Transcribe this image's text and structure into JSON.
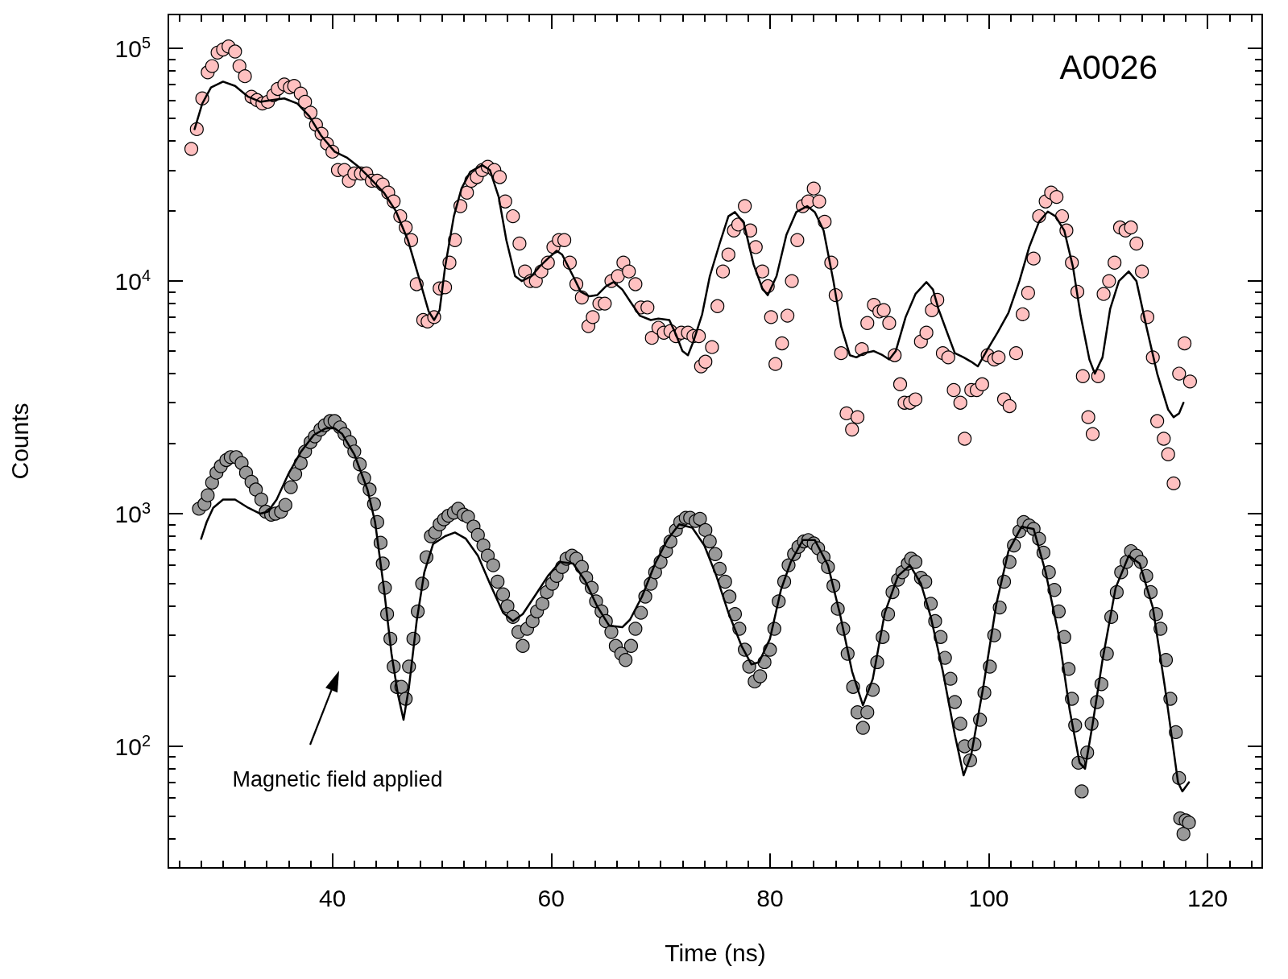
{
  "chart_data": {
    "type": "scatter",
    "xlabel": "Time (ns)",
    "ylabel": "Counts",
    "log": "y",
    "line_style": "solid",
    "xlim": [
      25,
      125
    ],
    "xticks": [
      40,
      60,
      80,
      100,
      120
    ],
    "ylim": [
      30,
      140000
    ],
    "yticks": [
      {
        "value": 100,
        "label": "10$^{2}$"
      },
      {
        "value": 1000,
        "label": "10$^{3}$"
      },
      {
        "value": 10000,
        "label": "10$^{4}$"
      },
      {
        "value": 100000,
        "label": "10$^{5}$"
      }
    ],
    "annotations": [
      "A0026",
      "Magnetic field applied"
    ],
    "series": [
      {
        "marker": "circle",
        "color": "#ffc0c0",
        "x": [
          27.1,
          27.6,
          28.1,
          28.6,
          29.0,
          29.5,
          30.0,
          30.5,
          31.1,
          31.5,
          32.0,
          32.6,
          33.1,
          33.6,
          34.1,
          34.6,
          35.0,
          35.6,
          36.1,
          36.5,
          37.1,
          37.5,
          38.0,
          38.5,
          39.0,
          39.5,
          40.0,
          40.5,
          41.1,
          41.5,
          42.0,
          42.6,
          43.1,
          43.6,
          44.1,
          44.6,
          45.1,
          45.6,
          46.2,
          46.7,
          47.2,
          47.7,
          48.3,
          48.7,
          49.3,
          49.8,
          50.3,
          50.7,
          51.2,
          51.7,
          52.3,
          52.7,
          53.2,
          53.7,
          54.2,
          54.8,
          55.3,
          55.8,
          56.5,
          57.1,
          57.6,
          58.1,
          58.6,
          59.1,
          59.7,
          60.2,
          60.7,
          61.2,
          61.7,
          62.3,
          62.8,
          63.4,
          63.8,
          64.4,
          64.9,
          65.5,
          66.1,
          66.6,
          67.1,
          67.7,
          68.2,
          68.8,
          69.2,
          69.8,
          70.3,
          70.9,
          71.4,
          71.9,
          72.5,
          73.0,
          73.5,
          73.7,
          74.1,
          74.7,
          75.2,
          75.7,
          76.2,
          76.7,
          77.1,
          77.7,
          78.2,
          78.7,
          79.3,
          79.8,
          80.1,
          80.5,
          81.1,
          81.6,
          82.0,
          82.5,
          83.0,
          83.5,
          84.0,
          84.5,
          85.0,
          85.6,
          86.0,
          86.5,
          87.0,
          87.5,
          88.0,
          88.4,
          88.9,
          89.5,
          90.0,
          90.4,
          90.9,
          91.4,
          91.9,
          92.3,
          92.8,
          93.3,
          93.8,
          94.3,
          94.8,
          95.3,
          95.8,
          96.3,
          96.8,
          97.4,
          97.8,
          98.4,
          98.9,
          99.4,
          99.9,
          100.5,
          100.9,
          101.4,
          101.9,
          102.5,
          103.1,
          103.6,
          104.1,
          104.6,
          105.2,
          105.7,
          106.2,
          106.7,
          107.1,
          107.6,
          108.1,
          108.6,
          109.1,
          109.5,
          110.0,
          110.5,
          111.0,
          111.5,
          112.0,
          112.5,
          113.0,
          113.5,
          114.0,
          114.5,
          115.0,
          115.4,
          116.0,
          116.4,
          116.9,
          117.4,
          117.9,
          118.4
        ],
        "values": [
          37000,
          45000,
          61000,
          79000,
          84000,
          96000,
          99000,
          102000,
          97000,
          84000,
          76000,
          62000,
          60000,
          58000,
          59000,
          63000,
          67000,
          70000,
          68000,
          69000,
          64000,
          59000,
          53000,
          47000,
          43000,
          39000,
          36000,
          30000,
          30000,
          27000,
          29000,
          29000,
          29000,
          27000,
          27000,
          26000,
          24000,
          22000,
          19000,
          17000,
          15000,
          9700,
          6800,
          6700,
          7000,
          9300,
          9400,
          12000,
          15000,
          21000,
          24000,
          27000,
          28000,
          30000,
          31000,
          30000,
          28000,
          22000,
          19000,
          14500,
          11000,
          10000,
          10000,
          11000,
          12000,
          14000,
          15000,
          15000,
          12000,
          9700,
          8500,
          6400,
          7000,
          8000,
          8000,
          10000,
          10500,
          12000,
          11000,
          9700,
          7700,
          7700,
          5700,
          6300,
          6000,
          6100,
          5800,
          6000,
          6000,
          5800,
          5800,
          4300,
          4500,
          5200,
          7800,
          11000,
          13000,
          16500,
          17500,
          21000,
          16500,
          14000,
          11000,
          9500,
          7000,
          4400,
          5400,
          7100,
          10000,
          15000,
          21000,
          22000,
          25000,
          22000,
          18000,
          12000,
          8700,
          4900,
          2700,
          2300,
          2600,
          5100,
          6600,
          7900,
          7400,
          7500,
          6600,
          4800,
          3600,
          3000,
          3000,
          3100,
          5500,
          6000,
          7500,
          8300,
          4900,
          4700,
          3400,
          3000,
          2100,
          3400,
          3400,
          3600,
          4800,
          4600,
          4700,
          3100,
          2900,
          4900,
          7200,
          8900,
          12500,
          19000,
          22000,
          24000,
          23000,
          19000,
          16500,
          12000,
          9000,
          3900,
          2600,
          2200,
          3900,
          8800,
          10000,
          12000,
          17000,
          16500,
          17000,
          14500,
          11000,
          7000,
          4700,
          2500,
          2100,
          1800,
          1350,
          4000,
          5400,
          3700
        ]
      },
      {
        "type": "line",
        "marker": "none",
        "color": "#000000",
        "x": [
          27.4,
          28.1,
          28.9,
          30.0,
          31.1,
          32.3,
          33.4,
          34.5,
          35.6,
          36.8,
          37.9,
          39.0,
          40.2,
          41.3,
          42.4,
          43.5,
          44.7,
          45.8,
          46.9,
          48.0,
          48.8,
          49.3,
          49.8,
          50.3,
          51.1,
          51.8,
          52.6,
          53.7,
          54.4,
          55.2,
          55.9,
          56.7,
          57.3,
          58.2,
          58.9,
          59.7,
          60.5,
          61.0,
          62.0,
          62.7,
          63.5,
          64.2,
          65.0,
          65.7,
          66.5,
          67.2,
          68.1,
          69.1,
          69.8,
          70.8,
          71.4,
          72.0,
          72.5,
          73.0,
          73.8,
          74.5,
          75.4,
          76.2,
          76.8,
          77.6,
          78.5,
          79.3,
          79.8,
          80.6,
          81.5,
          82.4,
          83.4,
          84.1,
          84.9,
          85.8,
          86.5,
          87.3,
          87.9,
          88.6,
          89.5,
          90.3,
          90.9,
          91.5,
          92.4,
          93.3,
          94.3,
          94.9,
          95.4,
          96.2,
          96.9,
          97.7,
          98.4,
          99.0,
          99.9,
          100.8,
          101.8,
          102.8,
          103.7,
          104.6,
          105.4,
          106.1,
          106.9,
          107.7,
          108.4,
          109.2,
          109.7,
          110.4,
          111.1,
          111.9,
          112.8,
          113.5,
          114.4,
          115.4,
          116.4,
          116.9,
          117.4,
          117.8
        ],
        "values": [
          45000,
          58000,
          68000,
          72000,
          69000,
          62000,
          59000,
          60000,
          61000,
          58000,
          51000,
          42000,
          36000,
          34000,
          31000,
          27500,
          24000,
          20000,
          15000,
          10000,
          7400,
          6800,
          7500,
          11500,
          19000,
          25000,
          29500,
          31500,
          30000,
          23000,
          15000,
          10500,
          10000,
          10500,
          11500,
          12500,
          13500,
          13000,
          10500,
          9000,
          8600,
          8700,
          9500,
          9900,
          9200,
          8200,
          7100,
          6800,
          6900,
          6800,
          5900,
          5000,
          4800,
          5500,
          7200,
          10500,
          14500,
          19000,
          19800,
          17800,
          11800,
          9300,
          8700,
          10500,
          15800,
          19800,
          21000,
          19800,
          16500,
          10000,
          6400,
          4800,
          4700,
          4900,
          5000,
          4800,
          4600,
          5000,
          7000,
          8800,
          9900,
          9200,
          7600,
          6000,
          4900,
          4700,
          4500,
          4300,
          5100,
          6000,
          7300,
          10000,
          14000,
          18000,
          19900,
          19000,
          16500,
          11500,
          7100,
          4600,
          4000,
          4700,
          7600,
          10000,
          11000,
          10000,
          6400,
          4000,
          2800,
          2600,
          2700,
          3000
        ]
      },
      {
        "marker": "circle",
        "color": "#999999",
        "x": [
          27.8,
          28.3,
          28.6,
          29.0,
          29.4,
          29.8,
          30.3,
          30.7,
          31.2,
          31.7,
          32.1,
          32.6,
          33.0,
          33.5,
          33.9,
          34.4,
          34.8,
          35.3,
          35.7,
          36.2,
          36.6,
          37.1,
          37.5,
          38.0,
          38.4,
          38.9,
          39.3,
          39.8,
          40.2,
          40.7,
          41.1,
          41.6,
          42.0,
          42.5,
          42.9,
          43.4,
          43.8,
          44.1,
          44.4,
          44.6,
          44.8,
          45.0,
          45.3,
          45.6,
          45.9,
          46.3,
          46.7,
          47.0,
          47.4,
          47.8,
          48.2,
          48.6,
          49.0,
          49.4,
          49.8,
          50.2,
          50.6,
          51.1,
          51.5,
          52.0,
          52.4,
          52.9,
          53.3,
          53.8,
          54.2,
          54.7,
          55.1,
          55.6,
          56.0,
          56.5,
          57.0,
          57.4,
          57.8,
          58.3,
          58.7,
          59.2,
          59.6,
          60.1,
          60.5,
          61.0,
          61.4,
          61.9,
          62.3,
          62.8,
          63.2,
          63.7,
          64.1,
          64.6,
          65.0,
          65.5,
          65.9,
          66.4,
          66.8,
          67.3,
          67.7,
          68.2,
          68.6,
          69.1,
          69.5,
          70.0,
          70.5,
          70.9,
          71.4,
          71.8,
          72.3,
          72.7,
          73.2,
          73.6,
          74.1,
          74.5,
          75.0,
          75.4,
          75.9,
          76.3,
          76.8,
          77.2,
          77.7,
          78.1,
          78.6,
          79.1,
          79.5,
          80.0,
          80.4,
          80.8,
          81.3,
          81.7,
          82.2,
          82.6,
          83.1,
          83.5,
          84.0,
          84.4,
          84.9,
          85.3,
          85.8,
          86.2,
          86.7,
          87.1,
          87.6,
          88.0,
          88.5,
          88.9,
          89.4,
          89.8,
          90.3,
          90.8,
          91.2,
          91.7,
          92.1,
          92.6,
          92.9,
          93.3,
          93.8,
          94.2,
          94.7,
          95.1,
          95.6,
          96.0,
          96.5,
          96.9,
          97.4,
          97.8,
          98.3,
          98.7,
          99.2,
          99.6,
          100.1,
          100.5,
          101.0,
          101.4,
          101.9,
          102.3,
          102.8,
          103.2,
          103.7,
          104.1,
          104.6,
          105.0,
          105.5,
          106.0,
          106.4,
          106.9,
          107.3,
          107.6,
          107.9,
          108.2,
          108.5,
          109.0,
          109.4,
          109.9,
          110.3,
          110.8,
          111.2,
          111.7,
          112.1,
          112.6,
          113.0,
          113.5,
          113.9,
          114.4,
          114.8,
          115.3,
          115.7,
          116.2,
          116.6,
          117.1,
          117.4,
          117.5,
          117.8,
          118.0,
          118.3
        ],
        "values": [
          1050,
          1100,
          1200,
          1360,
          1500,
          1600,
          1700,
          1750,
          1750,
          1650,
          1500,
          1370,
          1270,
          1150,
          1020,
          990,
          1000,
          1020,
          1090,
          1300,
          1480,
          1650,
          1850,
          2030,
          2150,
          2300,
          2400,
          2500,
          2500,
          2350,
          2200,
          2030,
          1850,
          1630,
          1420,
          1270,
          1100,
          920,
          750,
          610,
          480,
          370,
          290,
          220,
          180,
          180,
          160,
          220,
          290,
          380,
          500,
          650,
          800,
          830,
          900,
          945,
          980,
          1010,
          1050,
          990,
          970,
          880,
          810,
          730,
          660,
          600,
          510,
          450,
          400,
          360,
          310,
          270,
          320,
          345,
          380,
          410,
          460,
          500,
          540,
          590,
          640,
          660,
          640,
          590,
          530,
          480,
          420,
          380,
          345,
          310,
          270,
          250,
          235,
          270,
          320,
          375,
          440,
          500,
          560,
          620,
          690,
          760,
          850,
          920,
          960,
          960,
          930,
          950,
          850,
          760,
          670,
          580,
          510,
          440,
          370,
          320,
          260,
          220,
          190,
          200,
          230,
          260,
          320,
          420,
          510,
          600,
          670,
          720,
          760,
          770,
          745,
          710,
          650,
          590,
          490,
          390,
          320,
          250,
          180,
          140,
          120,
          140,
          175,
          230,
          295,
          370,
          460,
          520,
          560,
          610,
          640,
          620,
          530,
          510,
          410,
          345,
          295,
          240,
          195,
          155,
          125,
          100,
          87,
          102,
          130,
          170,
          220,
          300,
          395,
          510,
          620,
          730,
          840,
          920,
          890,
          860,
          780,
          680,
          560,
          470,
          380,
          295,
          215,
          160,
          123,
          85,
          64,
          94,
          125,
          155,
          185,
          250,
          360,
          460,
          560,
          620,
          690,
          660,
          620,
          540,
          460,
          370,
          320,
          235,
          160,
          115,
          73,
          49,
          42,
          48,
          47
        ]
      },
      {
        "type": "line",
        "marker": "none",
        "color": "#000000",
        "x": [
          28.0,
          28.5,
          29.1,
          30.0,
          31.1,
          32.3,
          33.4,
          34.1,
          34.9,
          36.0,
          37.1,
          38.3,
          39.4,
          40.2,
          40.9,
          42.0,
          43.2,
          43.9,
          44.7,
          45.4,
          46.0,
          46.5,
          47.0,
          47.7,
          48.4,
          49.2,
          50.3,
          51.2,
          52.2,
          53.3,
          54.4,
          55.6,
          56.5,
          57.4,
          58.6,
          59.7,
          60.8,
          62.0,
          63.1,
          64.2,
          65.3,
          66.5,
          67.2,
          68.3,
          69.5,
          70.6,
          71.7,
          72.9,
          74.0,
          75.1,
          76.2,
          77.4,
          78.3,
          79.0,
          80.0,
          81.0,
          81.9,
          83.0,
          84.1,
          85.3,
          86.4,
          87.5,
          88.5,
          89.4,
          90.5,
          91.7,
          92.8,
          93.8,
          94.7,
          95.8,
          96.9,
          97.7,
          98.4,
          99.5,
          100.7,
          101.8,
          103.0,
          104.1,
          105.2,
          106.4,
          107.4,
          108.3,
          108.8,
          109.5,
          110.4,
          111.6,
          112.8,
          113.8,
          115.0,
          116.1,
          117.3,
          117.7,
          118.3
        ],
        "values": [
          780,
          920,
          1060,
          1150,
          1150,
          1060,
          1000,
          1020,
          1150,
          1490,
          1840,
          2180,
          2330,
          2330,
          2200,
          1800,
          1270,
          920,
          480,
          250,
          166,
          130,
          180,
          345,
          560,
          740,
          800,
          830,
          780,
          660,
          500,
          375,
          345,
          370,
          450,
          540,
          620,
          610,
          515,
          400,
          330,
          325,
          350,
          440,
          610,
          770,
          900,
          870,
          730,
          540,
          375,
          270,
          225,
          230,
          290,
          470,
          620,
          770,
          770,
          600,
          370,
          210,
          150,
          195,
          375,
          540,
          600,
          500,
          360,
          210,
          112,
          75,
          92,
          180,
          410,
          690,
          880,
          860,
          560,
          300,
          143,
          85,
          80,
          125,
          235,
          480,
          660,
          610,
          395,
          180,
          70,
          64,
          70
        ]
      }
    ]
  }
}
